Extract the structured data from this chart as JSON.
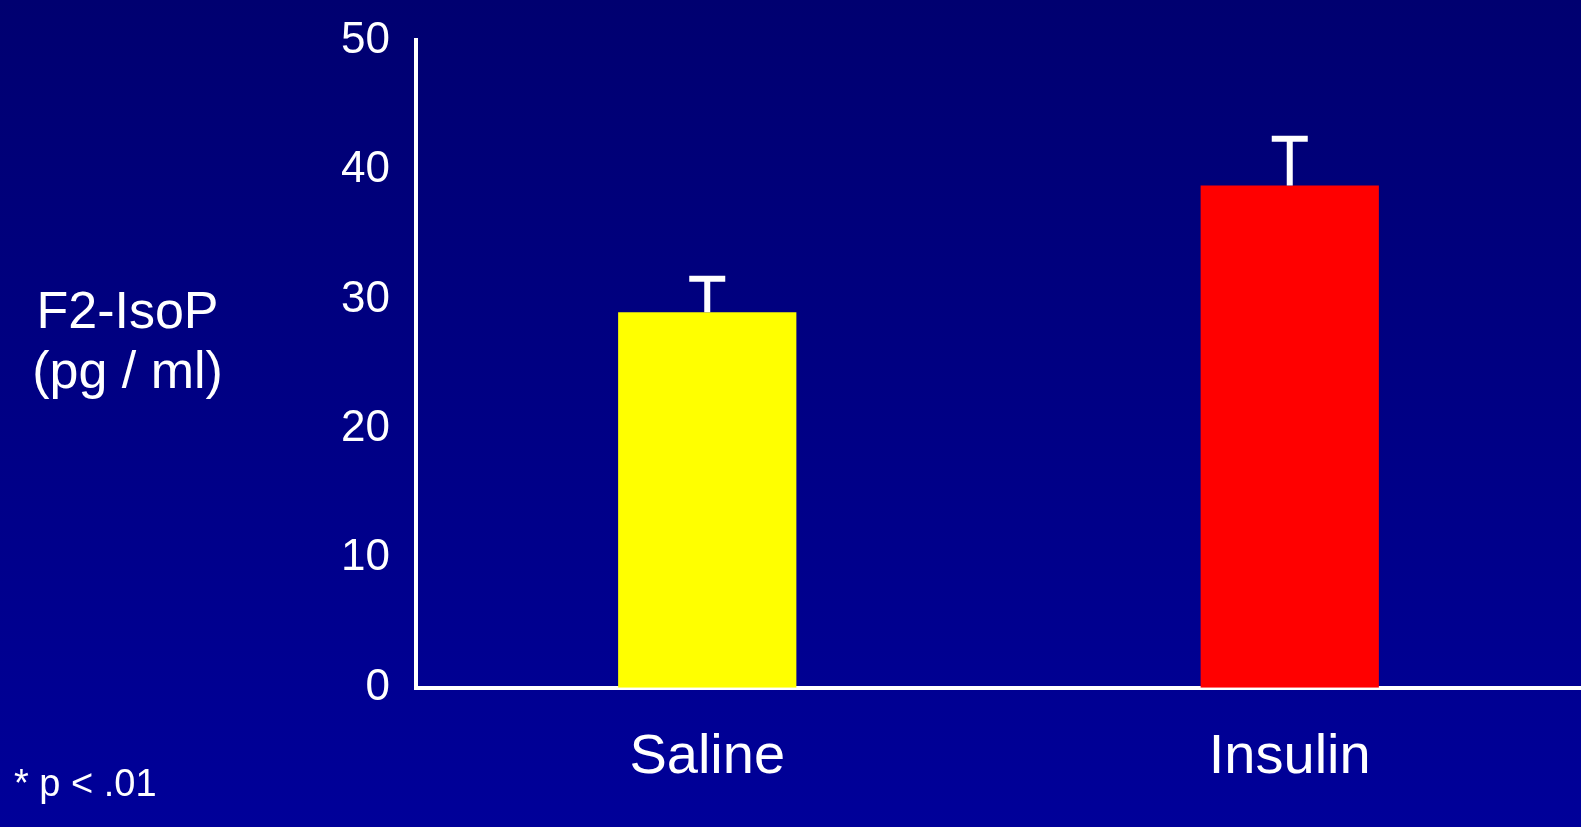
{
  "chart_data": {
    "type": "bar",
    "ylabel": "F2-IsoP (pg / ml)",
    "categories": [
      "Saline",
      "Insulin"
    ],
    "values": [
      29,
      38.8
    ],
    "colors": [
      "#ffff00",
      "#ff0000"
    ],
    "errors": [
      2.6,
      3.6
    ],
    "ylim": [
      0,
      50
    ],
    "yticks": [
      0,
      10,
      20,
      30,
      40,
      50
    ],
    "grid": false,
    "legend": false,
    "annotations": [
      "* p < .01"
    ]
  }
}
